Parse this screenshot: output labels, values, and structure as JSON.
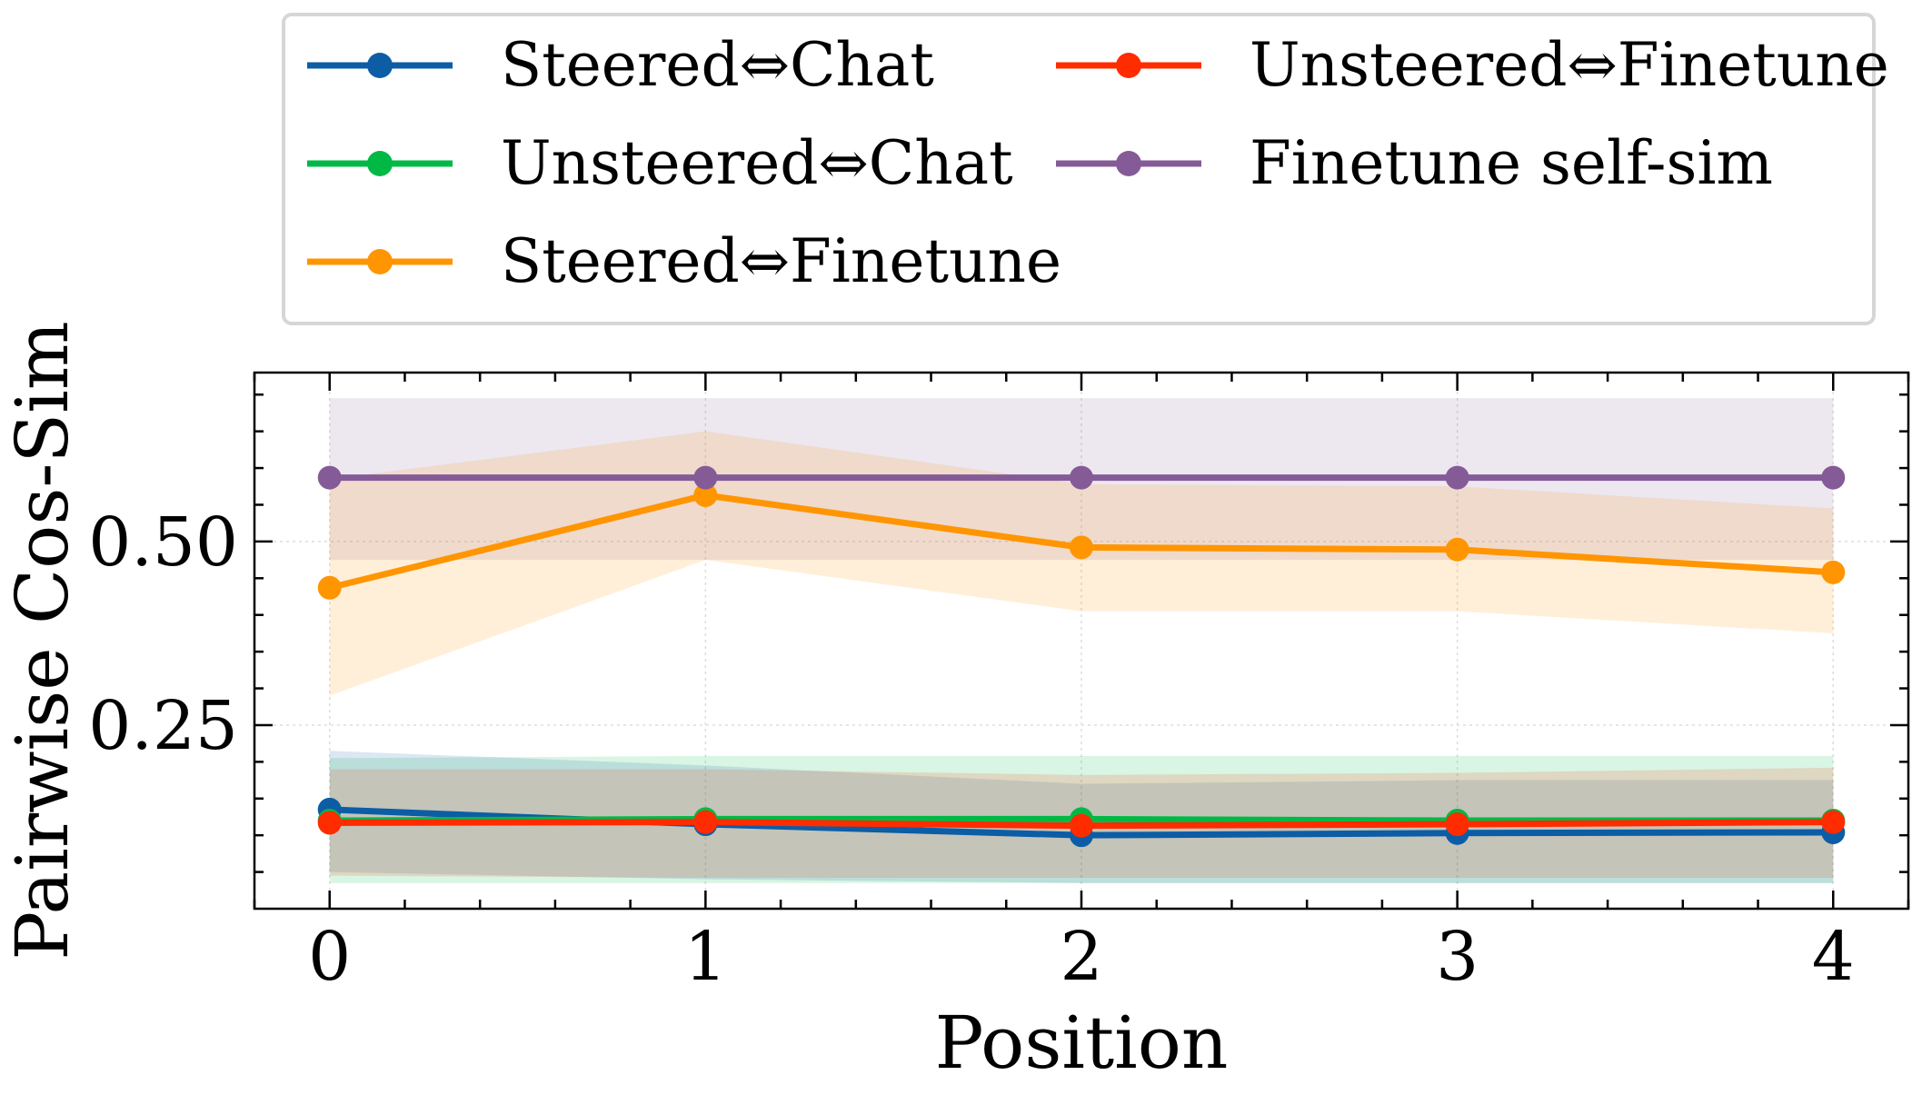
{
  "chart_data": {
    "type": "line",
    "title": "",
    "xlabel": "Position",
    "ylabel": "Pairwise Cos-Sim",
    "x": [
      0,
      1,
      2,
      3,
      4
    ],
    "xlim": [
      -0.2,
      4.2
    ],
    "ylim": [
      0.0,
      0.73
    ],
    "xticks": [
      0,
      1,
      2,
      3,
      4
    ],
    "xtick_labels": [
      "0",
      "1",
      "2",
      "3",
      "4"
    ],
    "yticks": [
      0.25,
      0.5
    ],
    "ytick_labels": [
      "0.25",
      "0.50"
    ],
    "grid": true,
    "legend_position": "above plot, two columns",
    "series": [
      {
        "name": "Steered⇔Chat",
        "color": "#0C5DA5",
        "values": [
          0.135,
          0.115,
          0.1,
          0.103,
          0.104
        ],
        "band_lower": [
          0.05,
          0.04,
          0.035,
          0.035,
          0.035
        ],
        "band_upper": [
          0.215,
          0.195,
          0.17,
          0.175,
          0.175
        ]
      },
      {
        "name": "Unsteered⇔Chat",
        "color": "#00B945",
        "values": [
          0.12,
          0.122,
          0.122,
          0.12,
          0.12
        ],
        "band_lower": [
          0.035,
          0.035,
          0.035,
          0.035,
          0.035
        ],
        "band_upper": [
          0.205,
          0.208,
          0.208,
          0.208,
          0.208
        ]
      },
      {
        "name": "Steered⇔Finetune",
        "color": "#FF9500",
        "values": [
          0.437,
          0.563,
          0.492,
          0.489,
          0.458
        ],
        "band_lower": [
          0.29,
          0.475,
          0.405,
          0.405,
          0.375
        ],
        "band_upper": [
          0.585,
          0.65,
          0.578,
          0.575,
          0.545
        ]
      },
      {
        "name": "Unsteered⇔Finetune",
        "color": "#FF2C00",
        "values": [
          0.117,
          0.118,
          0.113,
          0.115,
          0.118
        ],
        "band_lower": [
          0.045,
          0.042,
          0.042,
          0.042,
          0.042
        ],
        "band_upper": [
          0.19,
          0.19,
          0.182,
          0.185,
          0.192
        ]
      },
      {
        "name": "Finetune self-sim",
        "color": "#845B97",
        "values": [
          0.587,
          0.587,
          0.587,
          0.587,
          0.587
        ],
        "band_lower": [
          0.475,
          0.475,
          0.475,
          0.475,
          0.475
        ],
        "band_upper": [
          0.695,
          0.695,
          0.695,
          0.695,
          0.695
        ]
      }
    ]
  }
}
